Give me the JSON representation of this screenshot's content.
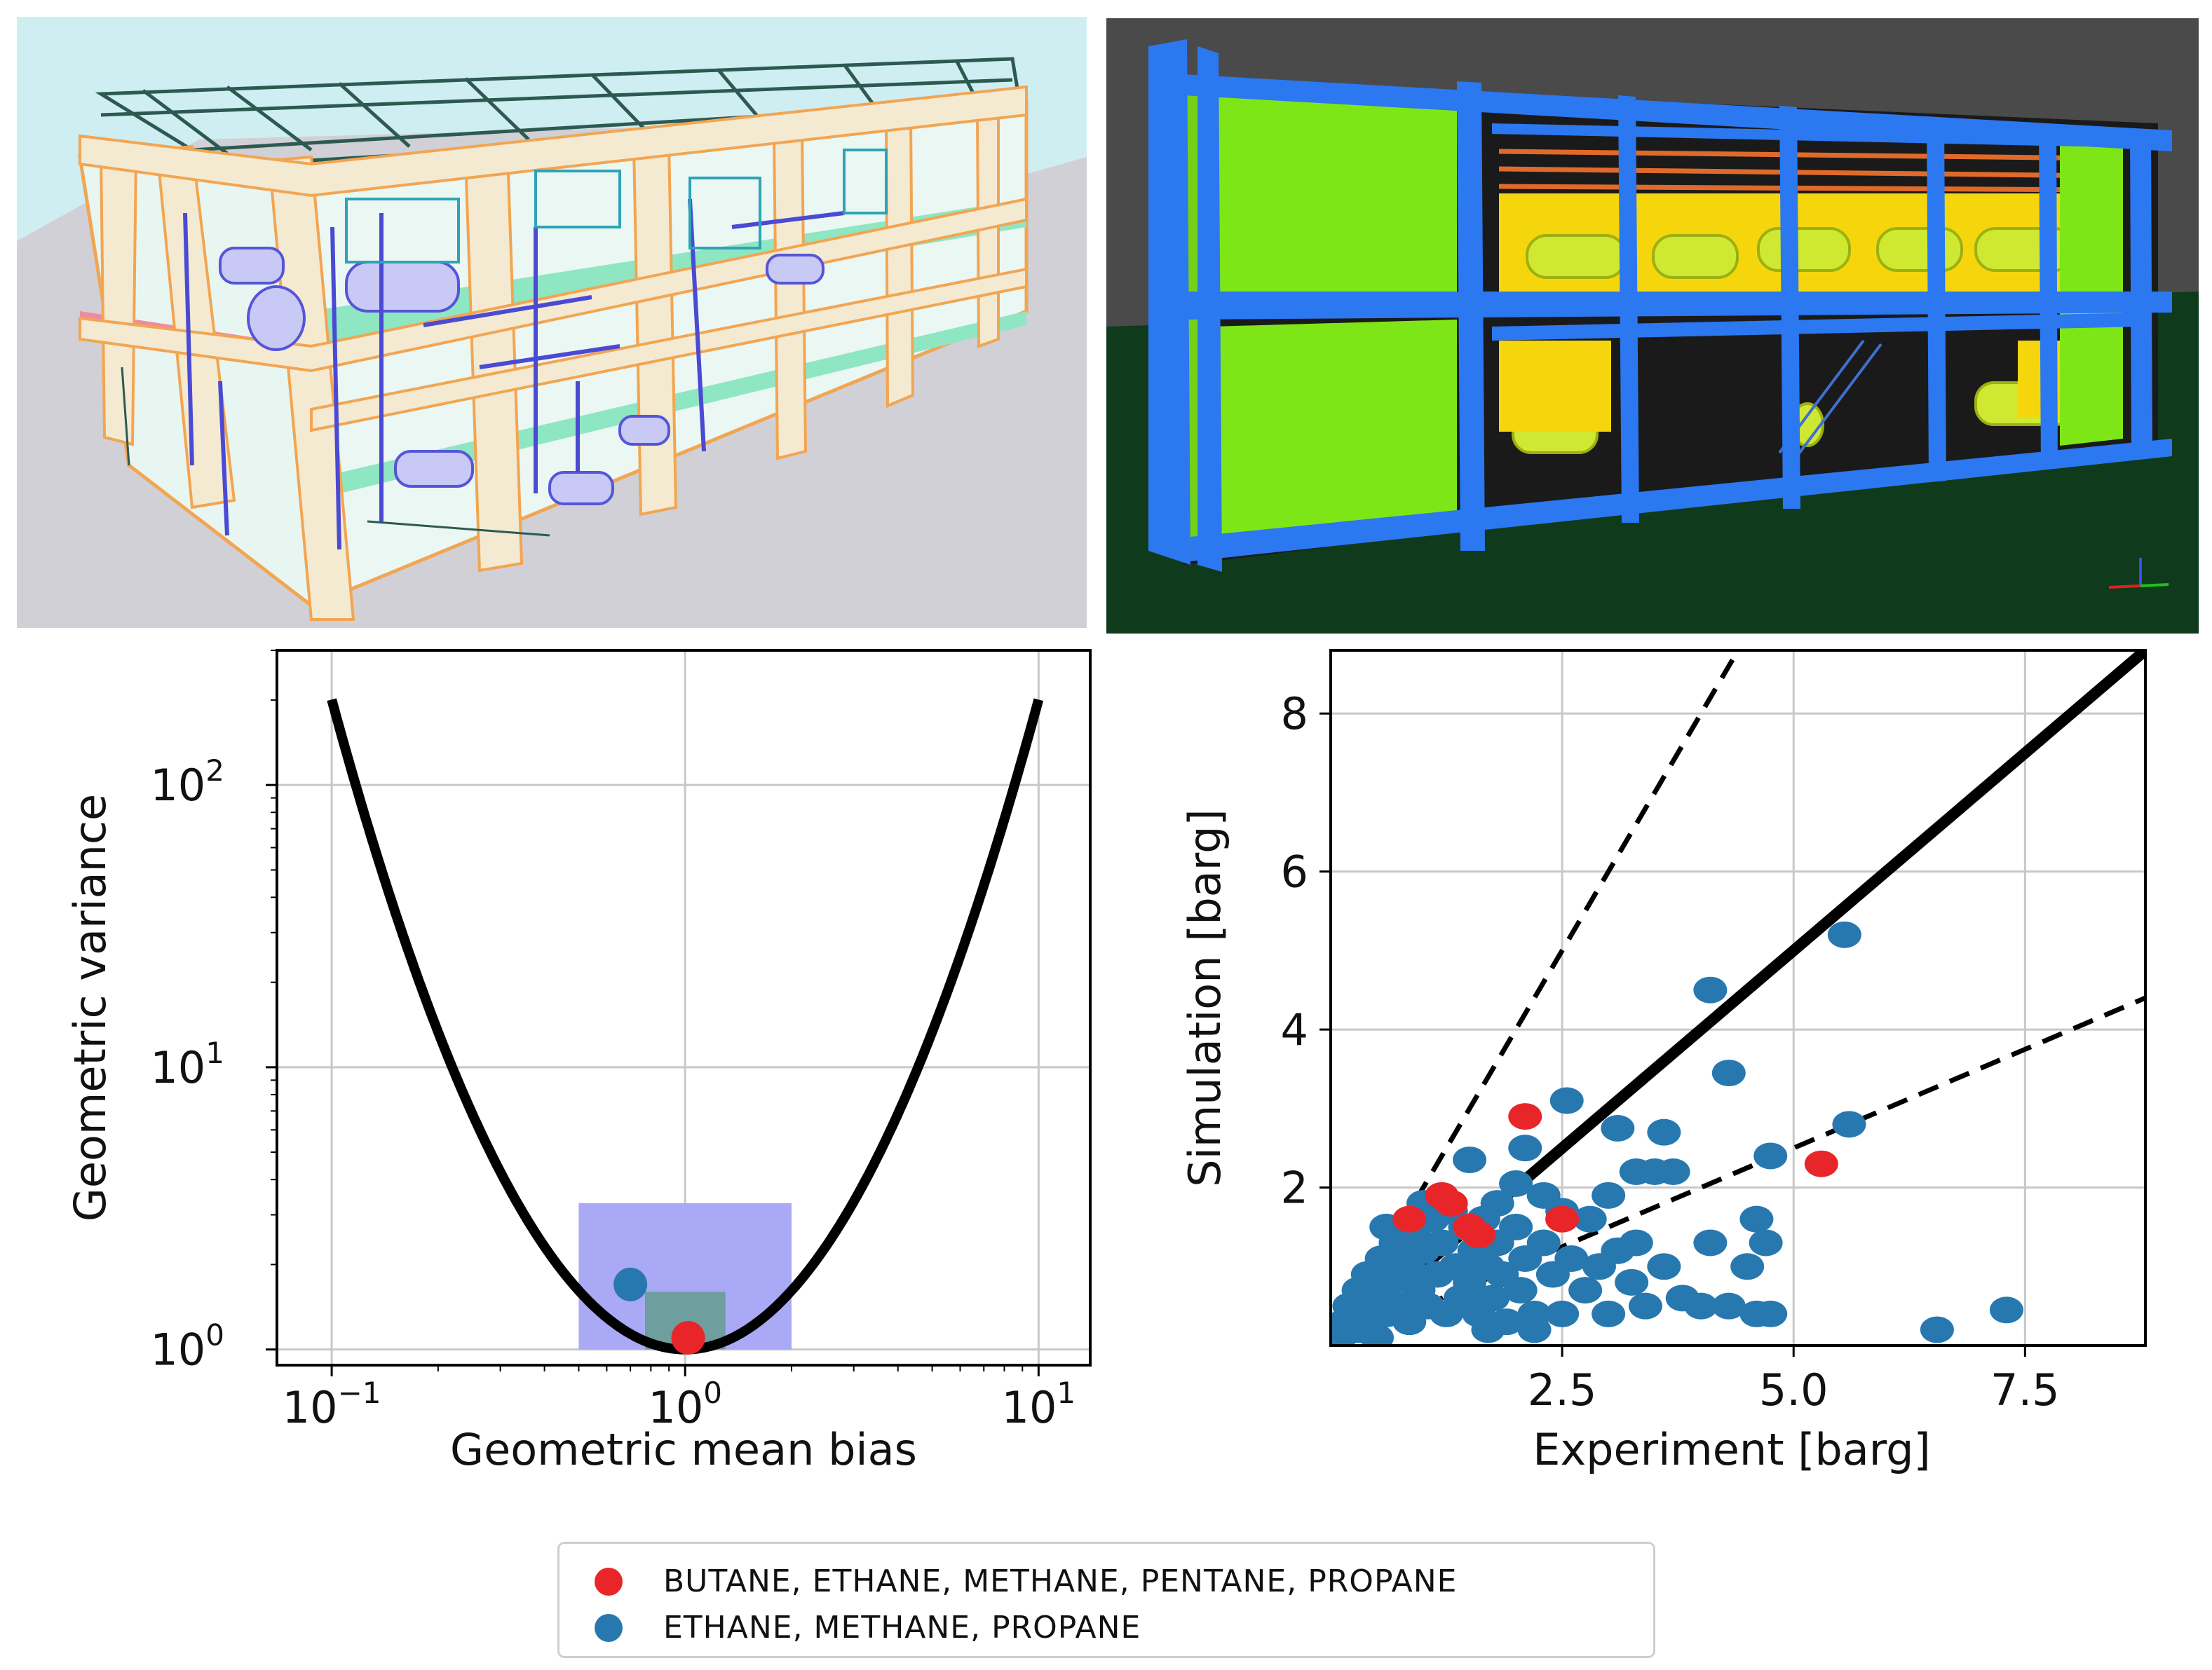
{
  "chart_data": [
    {
      "type": "line",
      "xlabel": "Geometric mean bias",
      "ylabel": "Geometric variance",
      "xscale": "log",
      "yscale": "log",
      "xlim": [
        0.07,
        14
      ],
      "ylim": [
        0.88,
        300
      ],
      "xticks": [
        {
          "value": 0.1,
          "base": "10",
          "exp": "−1"
        },
        {
          "value": 1,
          "base": "10",
          "exp": "0"
        },
        {
          "value": 10,
          "base": "10",
          "exp": "1"
        }
      ],
      "yticks": [
        {
          "value": 1,
          "base": "10",
          "exp": "0"
        },
        {
          "value": 10,
          "base": "10",
          "exp": "1"
        },
        {
          "value": 100,
          "base": "10",
          "exp": "2"
        }
      ],
      "grid": true,
      "curve": {
        "description_function": "VG = exp(ln(MG)^2)",
        "x_range": [
          0.1,
          10
        ],
        "color": "#000000"
      },
      "regions": [
        {
          "x": [
            0.5,
            2.0
          ],
          "y": [
            1.0,
            3.3
          ],
          "color": "#a9a9f5"
        },
        {
          "x": [
            0.77,
            1.3
          ],
          "y": [
            1.0,
            1.6
          ],
          "color": "#6e9e9e"
        }
      ],
      "series": [
        {
          "name": "BUTANE, ETHANE, METHANE, PENTANE, PROPANE",
          "color": "#e8262a",
          "points": [
            [
              1.02,
              1.1
            ]
          ]
        },
        {
          "name": "ETHANE, METHANE, PROPANE",
          "color": "#2878b0",
          "points": [
            [
              0.7,
              1.7
            ]
          ]
        }
      ]
    },
    {
      "type": "scatter",
      "xlabel": "Experiment [barg]",
      "ylabel": "Simulation [barg]",
      "xlim": [
        0,
        8.8
      ],
      "ylim": [
        0,
        8.8
      ],
      "xticks": [
        "2.5",
        "5.0",
        "7.5"
      ],
      "yticks": [
        "2",
        "4",
        "6",
        "8"
      ],
      "grid": true,
      "lines": [
        {
          "slope": 1,
          "style": "solid",
          "color": "#000000"
        },
        {
          "slope": 2,
          "style": "dashed",
          "color": "#000000"
        },
        {
          "slope": 0.5,
          "style": "dashed",
          "color": "#000000"
        }
      ],
      "series": [
        {
          "name": "ETHANE, METHANE, PROPANE",
          "color": "#2878b0",
          "points": [
            [
              0.1,
              0.1
            ],
            [
              0.15,
              0.3
            ],
            [
              0.2,
              0.5
            ],
            [
              0.25,
              0.2
            ],
            [
              0.3,
              0.7
            ],
            [
              0.35,
              0.4
            ],
            [
              0.4,
              0.9
            ],
            [
              0.45,
              0.3
            ],
            [
              0.5,
              0.6
            ],
            [
              0.55,
              1.1
            ],
            [
              0.6,
              0.4
            ],
            [
              0.65,
              0.8
            ],
            [
              0.7,
              1.3
            ],
            [
              0.75,
              0.5
            ],
            [
              0.8,
              1.0
            ],
            [
              0.85,
              0.3
            ],
            [
              0.9,
              1.4
            ],
            [
              0.95,
              0.7
            ],
            [
              1.0,
              1.2
            ],
            [
              1.05,
              0.5
            ],
            [
              1.1,
              1.6
            ],
            [
              1.15,
              0.9
            ],
            [
              1.2,
              1.3
            ],
            [
              1.25,
              0.4
            ],
            [
              1.3,
              1.7
            ],
            [
              1.35,
              1.0
            ],
            [
              1.4,
              0.6
            ],
            [
              1.45,
              1.5
            ],
            [
              1.5,
              0.8
            ],
            [
              1.55,
              1.2
            ],
            [
              1.6,
              0.4
            ],
            [
              1.65,
              1.6
            ],
            [
              1.7,
              1.0
            ],
            [
              1.75,
              0.6
            ],
            [
              1.8,
              1.3
            ],
            [
              1.85,
              0.9
            ],
            [
              1.9,
              0.3
            ],
            [
              2.0,
              1.5
            ],
            [
              2.05,
              0.7
            ],
            [
              2.1,
              1.1
            ],
            [
              2.2,
              0.4
            ],
            [
              2.3,
              1.3
            ],
            [
              2.4,
              0.9
            ],
            [
              2.5,
              0.4
            ],
            [
              2.6,
              1.1
            ],
            [
              2.75,
              0.7
            ],
            [
              2.9,
              1.0
            ],
            [
              3.0,
              0.4
            ],
            [
              3.1,
              1.2
            ],
            [
              3.25,
              0.8
            ],
            [
              3.4,
              0.5
            ],
            [
              3.6,
              1.0
            ],
            [
              3.8,
              0.6
            ],
            [
              4.0,
              0.5
            ],
            [
              4.1,
              1.3
            ],
            [
              4.3,
              0.5
            ],
            [
              4.5,
              1.0
            ],
            [
              4.6,
              0.4
            ],
            [
              4.75,
              0.4
            ],
            [
              1.2,
              1.7
            ],
            [
              0.9,
              0.9
            ],
            [
              0.6,
              1.5
            ],
            [
              1.5,
              2.35
            ],
            [
              2.55,
              3.1
            ],
            [
              3.1,
              2.75
            ],
            [
              3.5,
              2.2
            ],
            [
              3.6,
              2.7
            ],
            [
              3.7,
              2.2
            ],
            [
              4.3,
              3.45
            ],
            [
              4.1,
              4.5
            ],
            [
              4.7,
              1.3
            ],
            [
              4.75,
              2.4
            ],
            [
              5.55,
              5.2
            ],
            [
              5.6,
              2.8
            ],
            [
              6.55,
              0.2
            ],
            [
              7.3,
              0.45
            ],
            [
              2.0,
              2.05
            ],
            [
              2.5,
              1.7
            ],
            [
              2.8,
              1.6
            ],
            [
              3.3,
              1.3
            ],
            [
              1.8,
              1.8
            ],
            [
              2.1,
              2.5
            ],
            [
              2.3,
              1.9
            ],
            [
              3.0,
              1.9
            ],
            [
              3.3,
              2.2
            ],
            [
              4.6,
              1.6
            ],
            [
              1.0,
              1.8
            ],
            [
              0.7,
              1.1
            ],
            [
              0.3,
              0.2
            ],
            [
              0.5,
              0.1
            ],
            [
              1.7,
              0.2
            ],
            [
              2.2,
              0.2
            ]
          ]
        },
        {
          "name": "BUTANE, ETHANE, METHANE, PENTANE, PROPANE",
          "color": "#e8262a",
          "points": [
            [
              0.85,
              1.6
            ],
            [
              1.2,
              1.9
            ],
            [
              1.3,
              1.8
            ],
            [
              1.5,
              1.5
            ],
            [
              1.6,
              1.4
            ],
            [
              2.1,
              2.9
            ],
            [
              2.5,
              1.6
            ],
            [
              5.3,
              2.3
            ]
          ]
        }
      ]
    }
  ],
  "legend": [
    {
      "label": "BUTANE, ETHANE, METHANE, PENTANE, PROPANE",
      "color": "#e8262a"
    },
    {
      "label": "ETHANE, METHANE, PROPANE",
      "color": "#2878b0"
    }
  ],
  "images": [
    {
      "name": "plant-3d-render-light",
      "colors": {
        "sky": "#cfeef2",
        "ground": "#d0d0d6",
        "beams": "#f4ead2",
        "piping": "#6d6de0"
      }
    },
    {
      "name": "plant-3d-render-dark",
      "colors": {
        "background": "#4a4a4a",
        "floor": "#103a1c",
        "frame": "#2b78f0",
        "walls": "#7ee616",
        "vessels": "#cfe832"
      }
    }
  ]
}
